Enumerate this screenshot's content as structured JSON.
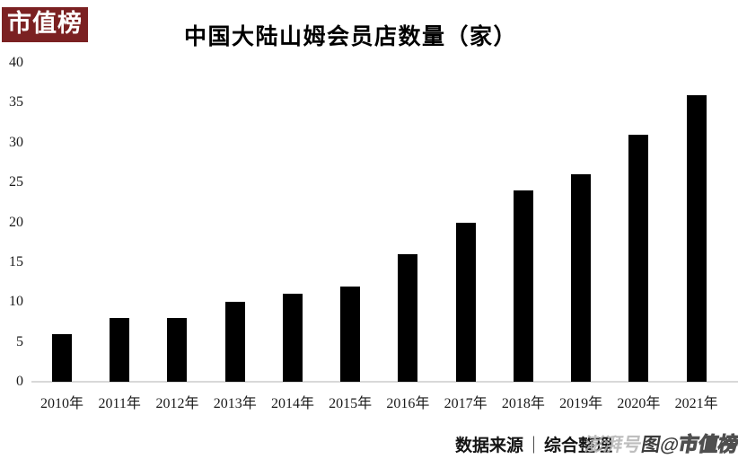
{
  "logo": {
    "text": "市值榜"
  },
  "chart_data": {
    "type": "bar",
    "title": "中国大陆山姆会员店数量（家）",
    "categories": [
      "2010年",
      "2011年",
      "2012年",
      "2013年",
      "2014年",
      "2015年",
      "2016年",
      "2017年",
      "2018年",
      "2019年",
      "2020年",
      "2021年"
    ],
    "values": [
      6,
      8,
      8,
      10,
      11,
      12,
      16,
      20,
      24,
      26,
      31,
      36
    ],
    "xlabel": "",
    "ylabel": "",
    "ylim": [
      0,
      40
    ],
    "yticks": [
      0,
      5,
      10,
      15,
      20,
      25,
      30,
      35,
      40
    ],
    "grid": false,
    "legend": false,
    "bar_color": "#000000",
    "axis_line_color": "#d8d8d8"
  },
  "footer": {
    "source_label": "数据来源",
    "divider": "｜",
    "source_value": "综合整理",
    "watermark": {
      "platform": "澎湃号",
      "logo": "图@",
      "name": "市值榜"
    }
  },
  "colors": {
    "logo_bg": "#7b2122",
    "bar": "#000000"
  }
}
